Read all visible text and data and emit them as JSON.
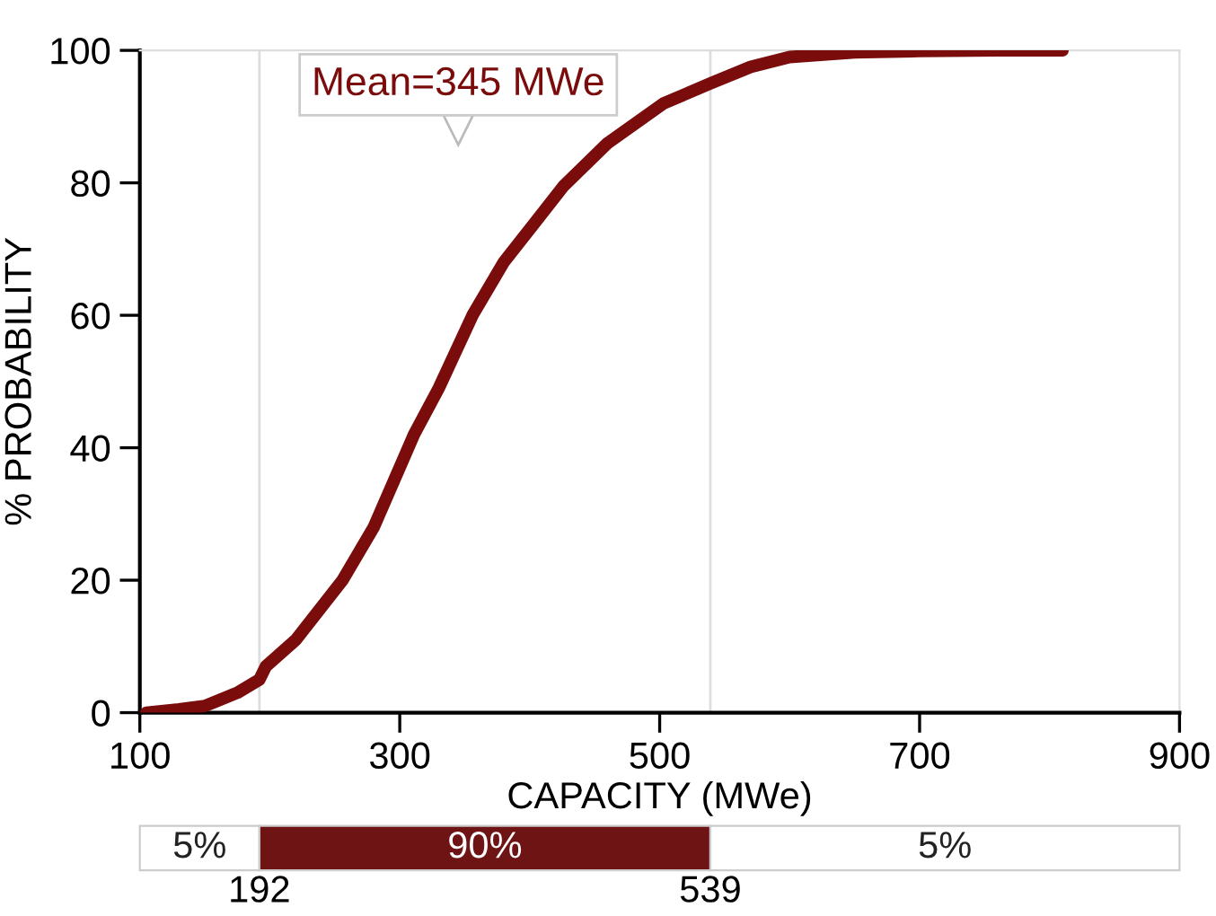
{
  "chart_data": {
    "type": "line",
    "xlabel": "CAPACITY (MWe)",
    "ylabel": "% PROBABILITY",
    "x": [
      105,
      130,
      150,
      175,
      192,
      197,
      220,
      256,
      280,
      311,
      330,
      356,
      380,
      400,
      426,
      460,
      503,
      539,
      570,
      600,
      650,
      700,
      760,
      810
    ],
    "series": [
      {
        "color": "#7b0c0c",
        "values": [
          0,
          0.5,
          1,
          3,
          5,
          7,
          11,
          20,
          28,
          42,
          49,
          60,
          68,
          73,
          79.5,
          86,
          92,
          95,
          97.5,
          99,
          99.7,
          99.9,
          100,
          100
        ]
      }
    ],
    "xlim": [
      100,
      900
    ],
    "xticks": [
      100,
      300,
      500,
      700,
      900
    ],
    "ylim": [
      0,
      100
    ],
    "yticks": [
      0,
      20,
      40,
      60,
      80,
      100
    ],
    "marker": "none",
    "line_style": "solid",
    "annotations": [
      {
        "text": "Mean=345 MWe",
        "x": 345,
        "y": 88
      },
      "5%",
      "90%",
      "5%",
      "192",
      "539"
    ],
    "ref_lines": [
      {
        "axis": "x",
        "value": 192,
        "color": "#dddddd"
      },
      {
        "axis": "x",
        "value": 539,
        "color": "#dddddd"
      }
    ]
  }
}
